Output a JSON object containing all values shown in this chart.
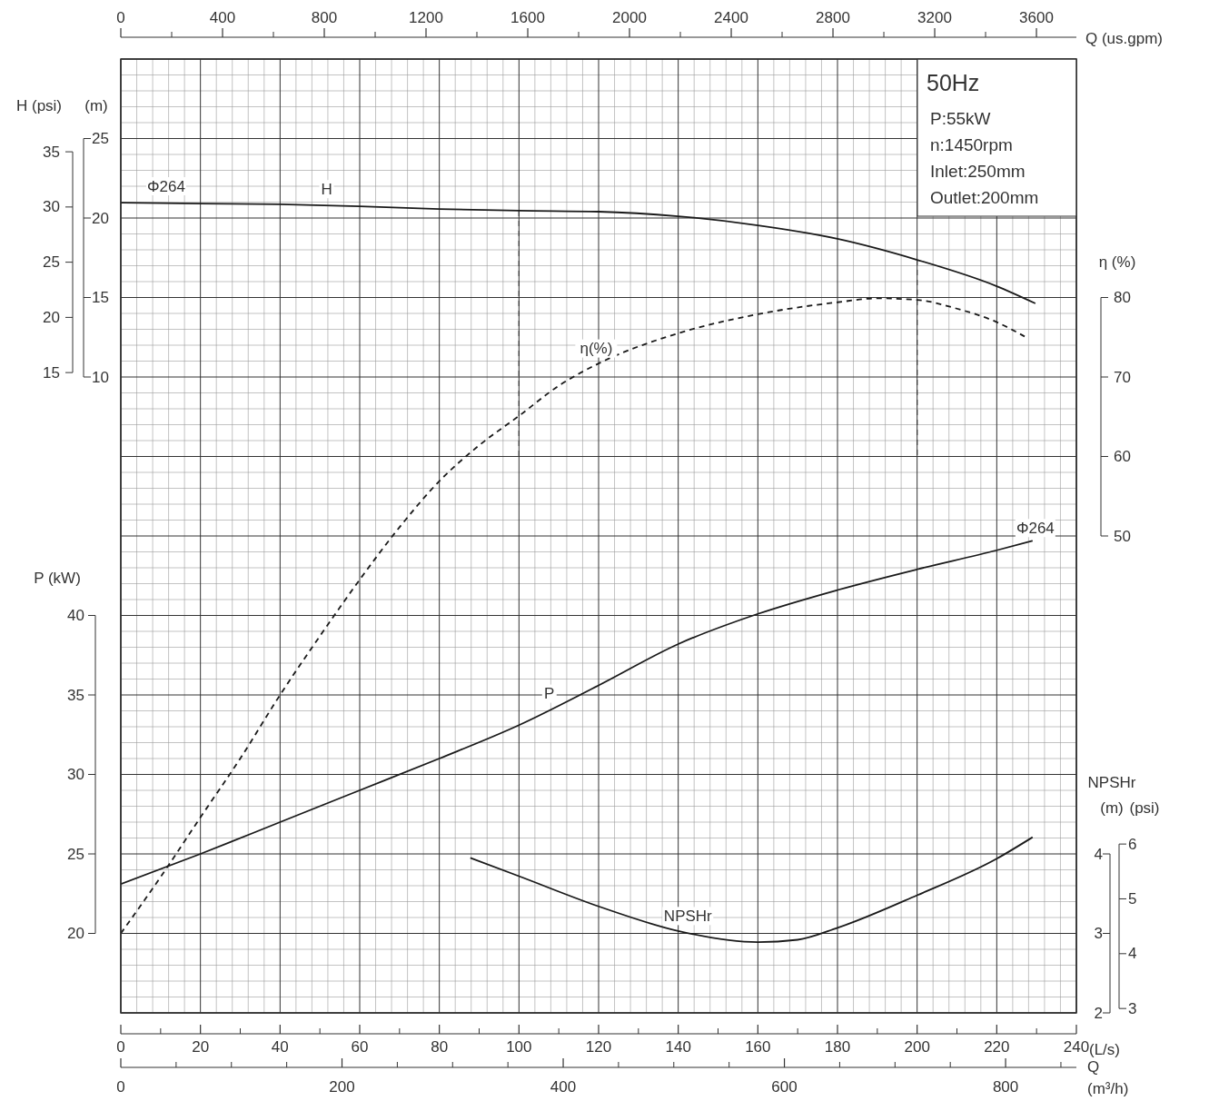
{
  "chart_data": [
    {
      "type": "line",
      "title": "50Hz",
      "annotations": [
        "P:55kW",
        "n:1450rpm",
        "Inlet:250mm",
        "Outlet:200mm",
        {
          "text": "Φ264",
          "x": 11.4,
          "y": 22.0
        },
        {
          "text": "Φ264",
          "x": 229.7,
          "y": 0.5
        }
      ],
      "xlabel": "(L/s)",
      "x2label": "Q (us.gpm)",
      "ylabel": "(m)",
      "y2label": "P (kW)",
      "y3label": "η (%)",
      "xlim": [
        0,
        240
      ],
      "xticks": [
        0,
        20,
        40,
        60,
        80,
        100,
        120,
        140,
        160,
        180,
        200,
        220,
        240
      ],
      "x2lim": [
        0,
        3757
      ],
      "x2ticks": [
        0,
        400,
        800,
        1200,
        1600,
        2000,
        2400,
        2800,
        3200,
        3600
      ],
      "ylim": [
        -30,
        30
      ],
      "yticks": [
        10,
        15,
        20,
        25
      ],
      "y2lim": [
        15,
        75
      ],
      "y2ticks": [
        20,
        25,
        30,
        35,
        40
      ],
      "y3lim": [
        -10,
        110
      ],
      "y3ticks": [
        50,
        60,
        70,
        80
      ],
      "grid": true,
      "marker": "none",
      "ref_lines": [
        {
          "axis": "x",
          "value": 100,
          "line_style": "dashed"
        },
        {
          "axis": "x",
          "value": 200,
          "line_style": "dashed"
        }
      ],
      "series": [
        {
          "name": "H",
          "color": "#1a1a1a",
          "line_style": "solid",
          "x": [
            0,
            20,
            40,
            60,
            80,
            100,
            120,
            140,
            160,
            180,
            200,
            220,
            229.7
          ],
          "values": [
            20.97,
            20.91,
            20.86,
            20.74,
            20.57,
            20.46,
            20.4,
            20.11,
            19.54,
            18.69,
            17.37,
            15.71,
            14.63
          ]
        },
        {
          "name": "η(%)",
          "axis": "y3",
          "color": "#1a1a1a",
          "line_style": "dashed",
          "x": [
            0,
            10,
            20,
            30,
            40,
            50,
            60,
            70,
            80,
            90,
            100,
            110,
            120,
            140,
            160,
            180,
            190,
            200,
            210,
            220,
            227
          ],
          "values": [
            0,
            7.1,
            14.6,
            22,
            30,
            37.4,
            44.5,
            51.1,
            56.9,
            61.4,
            65.1,
            68.9,
            71.7,
            75.5,
            77.9,
            79.4,
            79.9,
            79.7,
            78.6,
            76.9,
            75.1
          ]
        },
        {
          "name": "P",
          "axis": "y2",
          "color": "#1a1a1a",
          "line_style": "solid",
          "x": [
            0,
            20,
            40,
            60,
            80,
            100,
            120,
            140,
            160,
            180,
            200,
            220,
            229
          ],
          "values": [
            23.1,
            25.0,
            27.0,
            29.0,
            31.0,
            33.1,
            35.6,
            38.2,
            40.1,
            41.6,
            42.9,
            44.1,
            44.7
          ]
        }
      ]
    },
    {
      "type": "line",
      "xlabel": "Q\n(m³/h)",
      "xlim": [
        0,
        864
      ],
      "xticks": [
        0,
        200,
        400,
        600,
        800
      ],
      "ylabel": "NPSHr\n(m)",
      "ylim": [
        2,
        14
      ],
      "yticks": [
        2,
        3,
        4
      ],
      "y2label": "(psi)",
      "y2lim": [
        2.92,
        20.32
      ],
      "y2ticks": [
        3,
        4,
        5,
        6
      ],
      "y3label": "H (psi)",
      "y3lim": [
        -43.0,
        43.4
      ],
      "y3ticks": [
        15,
        20,
        25,
        30,
        35
      ],
      "series": [
        {
          "name": "NPSHr",
          "color": "#1a1a1a",
          "line_style": "solid",
          "x": [
            316,
            360,
            432,
            504,
            576,
            612,
            648,
            720,
            792,
            824.4
          ],
          "values": [
            3.95,
            3.72,
            3.34,
            3.03,
            2.89,
            2.92,
            3.07,
            3.48,
            3.94,
            4.21
          ]
        }
      ]
    }
  ]
}
